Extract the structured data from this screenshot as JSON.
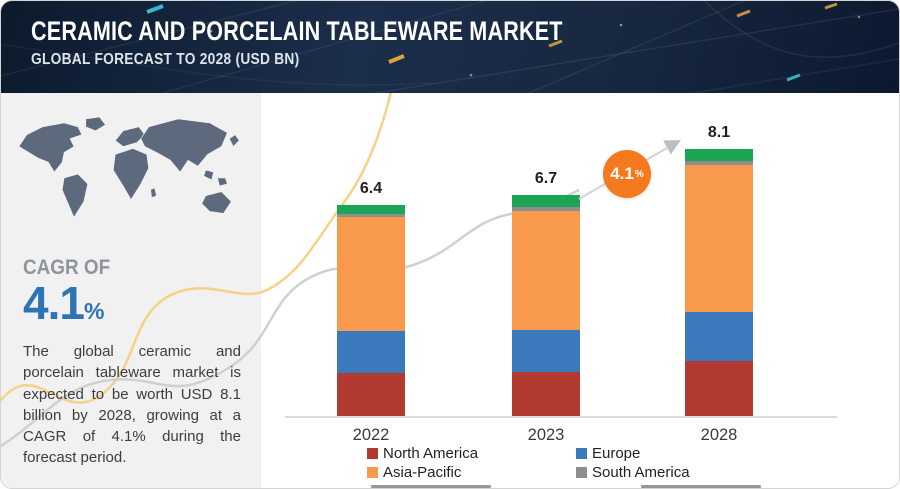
{
  "header": {
    "title": "CERAMIC AND PORCELAIN TABLEWARE MARKET",
    "subtitle": "GLOBAL FORECAST TO 2028 (USD BN)"
  },
  "sidebar": {
    "map_icon": "world-map",
    "cagr_label": "CAGR OF",
    "cagr_value": "4.1",
    "cagr_unit": "%",
    "description": "The global ceramic and porcelain tableware market is expected to be worth USD 8.1 billion by 2028, growing at a CAGR of 4.1% during the forecast period."
  },
  "chart_data": {
    "type": "bar",
    "stacked": true,
    "title": "Ceramic and Porcelain Tableware Market, Global Forecast to 2028 (USD BN)",
    "ylabel": "USD BN",
    "grid": false,
    "legend_position": "bottom",
    "categories": [
      "2022",
      "2023",
      "2028"
    ],
    "totals": [
      6.4,
      6.7,
      8.1
    ],
    "series": [
      {
        "name": "North America",
        "color": "#b23b31",
        "values": [
          1.3,
          1.33,
          1.68
        ]
      },
      {
        "name": "Europe",
        "color": "#3a79bb",
        "values": [
          1.27,
          1.27,
          1.48
        ]
      },
      {
        "name": "Asia-Pacific",
        "color": "#f9994c",
        "values": [
          3.46,
          3.6,
          4.45
        ]
      },
      {
        "name": "South America",
        "color": "#8e8e8e",
        "values": [
          0.1,
          0.12,
          0.12
        ]
      },
      {
        "name": "",
        "color": "#1ea455",
        "values": [
          0.27,
          0.38,
          0.37
        ]
      }
    ],
    "legend": [
      {
        "label": "North America",
        "color": "#b23b31"
      },
      {
        "label": "Europe",
        "color": "#3a79bb"
      },
      {
        "label": "Asia-Pacific",
        "color": "#f9994c"
      },
      {
        "label": "South America",
        "color": "#8e8e8e"
      }
    ],
    "annotation": {
      "growth_label": "4.1",
      "growth_unit": "%"
    }
  },
  "colors": {
    "header_navy": "#14273f",
    "cagr_blue": "#2e74b5",
    "accent_orange": "#f5791d",
    "swoosh_yellow": "#f5cf80",
    "swoosh_gray": "#cdced0",
    "map_fill": "#5d6a7e",
    "sidebar_bg": "#f1f1f2"
  }
}
